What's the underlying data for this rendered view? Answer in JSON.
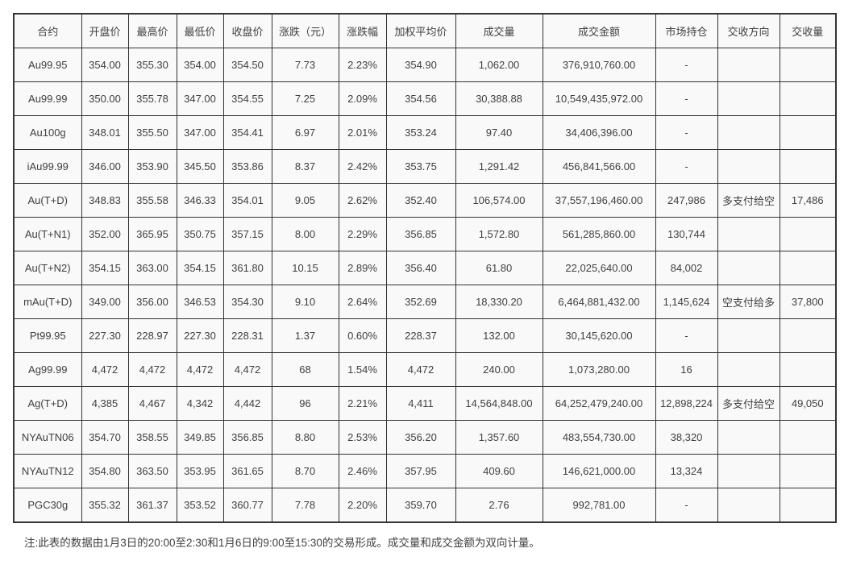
{
  "page": {
    "footnote": "注:此表的数据由1月3日的20:00至2:30和1月6日的9:00至15:30的交易形成。成交量和成交金额为双向计量。"
  },
  "colors": {
    "page_background": "#ffffff",
    "cell_background": "#f9f9f9",
    "border": "#333333",
    "text": "#404040"
  },
  "chart_data": {
    "type": "table",
    "columns": [
      "合约",
      "开盘价",
      "最高价",
      "最低价",
      "收盘价",
      "涨跌（元）",
      "涨跌幅",
      "加权平均价",
      "成交量",
      "成交金额",
      "市场持仓",
      "交收方向",
      "交收量"
    ],
    "rows": [
      [
        "Au99.95",
        "354.00",
        "355.30",
        "354.00",
        "354.50",
        "7.73",
        "2.23%",
        "354.90",
        "1,062.00",
        "376,910,760.00",
        "-",
        "",
        ""
      ],
      [
        "Au99.99",
        "350.00",
        "355.78",
        "347.00",
        "354.55",
        "7.25",
        "2.09%",
        "354.56",
        "30,388.88",
        "10,549,435,972.00",
        "-",
        "",
        ""
      ],
      [
        "Au100g",
        "348.01",
        "355.50",
        "347.00",
        "354.41",
        "6.97",
        "2.01%",
        "353.24",
        "97.40",
        "34,406,396.00",
        "-",
        "",
        ""
      ],
      [
        "iAu99.99",
        "346.00",
        "353.90",
        "345.50",
        "353.86",
        "8.37",
        "2.42%",
        "353.75",
        "1,291.42",
        "456,841,566.00",
        "-",
        "",
        ""
      ],
      [
        "Au(T+D)",
        "348.83",
        "355.58",
        "346.33",
        "354.01",
        "9.05",
        "2.62%",
        "352.40",
        "106,574.00",
        "37,557,196,460.00",
        "247,986",
        "多支付给空",
        "17,486"
      ],
      [
        "Au(T+N1)",
        "352.00",
        "365.95",
        "350.75",
        "357.15",
        "8.00",
        "2.29%",
        "356.85",
        "1,572.80",
        "561,285,860.00",
        "130,744",
        "",
        ""
      ],
      [
        "Au(T+N2)",
        "354.15",
        "363.00",
        "354.15",
        "361.80",
        "10.15",
        "2.89%",
        "356.40",
        "61.80",
        "22,025,640.00",
        "84,002",
        "",
        ""
      ],
      [
        "mAu(T+D)",
        "349.00",
        "356.00",
        "346.53",
        "354.30",
        "9.10",
        "2.64%",
        "352.69",
        "18,330.20",
        "6,464,881,432.00",
        "1,145,624",
        "空支付给多",
        "37,800"
      ],
      [
        "Pt99.95",
        "227.30",
        "228.97",
        "227.30",
        "228.31",
        "1.37",
        "0.60%",
        "228.37",
        "132.00",
        "30,145,620.00",
        "-",
        "",
        ""
      ],
      [
        "Ag99.99",
        "4,472",
        "4,472",
        "4,472",
        "4,472",
        "68",
        "1.54%",
        "4,472",
        "240.00",
        "1,073,280.00",
        "16",
        "",
        ""
      ],
      [
        "Ag(T+D)",
        "4,385",
        "4,467",
        "4,342",
        "4,442",
        "96",
        "2.21%",
        "4,411",
        "14,564,848.00",
        "64,252,479,240.00",
        "12,898,224",
        "多支付给空",
        "49,050"
      ],
      [
        "NYAuTN06",
        "354.70",
        "358.55",
        "349.85",
        "356.85",
        "8.80",
        "2.53%",
        "356.20",
        "1,357.60",
        "483,554,730.00",
        "38,320",
        "",
        ""
      ],
      [
        "NYAuTN12",
        "354.80",
        "363.50",
        "353.95",
        "361.65",
        "8.70",
        "2.46%",
        "357.95",
        "409.60",
        "146,621,000.00",
        "13,324",
        "",
        ""
      ],
      [
        "PGC30g",
        "355.32",
        "361.37",
        "353.52",
        "360.77",
        "7.78",
        "2.20%",
        "359.70",
        "2.76",
        "992,781.00",
        "-",
        "",
        ""
      ]
    ]
  }
}
